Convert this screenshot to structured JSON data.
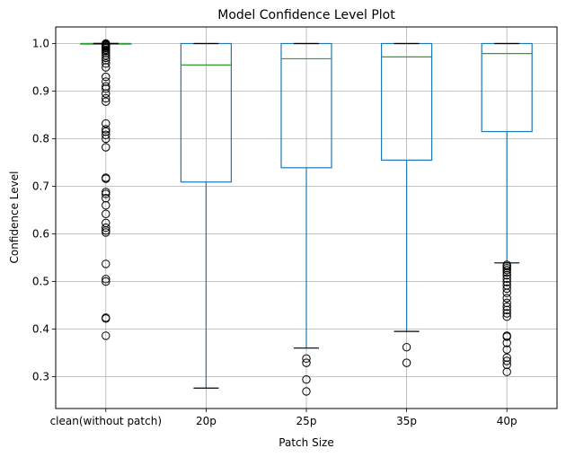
{
  "chart_data": {
    "type": "box",
    "title": "Model Confidence Level Plot",
    "xlabel": "Patch Size",
    "ylabel": "Confidence Level",
    "ylim": [
      0.23,
      1.04
    ],
    "yticks": [
      0.3,
      0.4,
      0.5,
      0.6,
      0.7,
      0.8,
      0.9,
      1.0
    ],
    "ytick_labels": [
      "0.3",
      "0.4",
      "0.5",
      "0.6",
      "0.7",
      "0.8",
      "0.9",
      "1.0"
    ],
    "grid": true,
    "colors": {
      "box": "#1f77b4",
      "median": "#2ca02c",
      "whisker_cap": "#000000",
      "grid": "#b0b0b0"
    },
    "categories": [
      "clean(without patch)",
      "20p",
      "25p",
      "35p",
      "40p"
    ],
    "boxes": [
      {
        "category": "clean(without patch)",
        "whisker_low": 1.0,
        "q1": 1.0,
        "median": 1.0,
        "q3": 1.0,
        "whisker_high": 1.0,
        "outliers": [
          1.0,
          0.999,
          0.998,
          0.997,
          0.996,
          0.994,
          0.992,
          0.99,
          0.987,
          0.984,
          0.98,
          0.975,
          0.97,
          0.965,
          0.958,
          0.95,
          0.93,
          0.92,
          0.91,
          0.905,
          0.895,
          0.885,
          0.878,
          0.832,
          0.82,
          0.815,
          0.808,
          0.8,
          0.782,
          0.718,
          0.716,
          0.688,
          0.684,
          0.675,
          0.66,
          0.642,
          0.623,
          0.613,
          0.607,
          0.603,
          0.537,
          0.505,
          0.5,
          0.424,
          0.422,
          0.386
        ]
      },
      {
        "category": "20p",
        "whisker_low": 0.276,
        "q1": 0.709,
        "median": 0.955,
        "q3": 1.0,
        "whisker_high": 1.0,
        "outliers": []
      },
      {
        "category": "25p",
        "whisker_low": 0.36,
        "q1": 0.739,
        "median": 0.968,
        "q3": 1.0,
        "whisker_high": 1.0,
        "outliers": [
          0.338,
          0.329,
          0.294,
          0.269
        ]
      },
      {
        "category": "35p",
        "whisker_low": 0.395,
        "q1": 0.755,
        "median": 0.972,
        "q3": 1.0,
        "whisker_high": 1.0,
        "outliers": [
          0.362,
          0.329
        ]
      },
      {
        "category": "40p",
        "whisker_low": 0.539,
        "q1": 0.815,
        "median": 0.979,
        "q3": 1.0,
        "whisker_high": 1.0,
        "outliers": [
          0.535,
          0.532,
          0.528,
          0.524,
          0.519,
          0.513,
          0.506,
          0.499,
          0.492,
          0.485,
          0.476,
          0.465,
          0.455,
          0.447,
          0.44,
          0.433,
          0.426,
          0.386,
          0.384,
          0.371,
          0.357,
          0.34,
          0.333,
          0.325,
          0.31
        ]
      }
    ]
  }
}
